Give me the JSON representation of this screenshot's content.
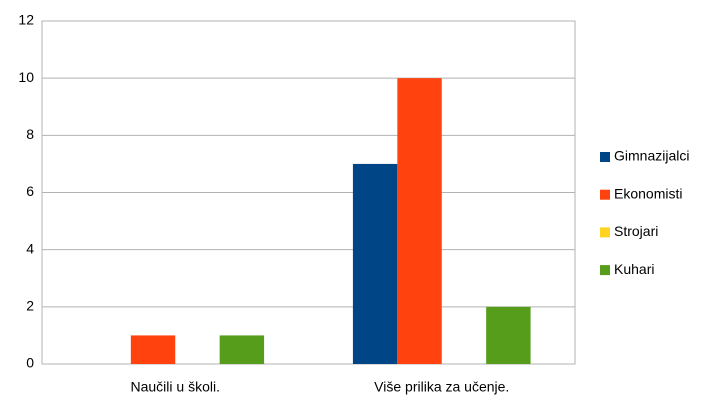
{
  "chart_data": {
    "type": "bar",
    "categories": [
      "Naučili u školi.",
      "Više prilika za učenje."
    ],
    "series": [
      {
        "name": "Gimnazijalci",
        "color": "#004586",
        "values": [
          0,
          7
        ]
      },
      {
        "name": "Ekonomisti",
        "color": "#ff420e",
        "values": [
          1,
          10
        ]
      },
      {
        "name": "Strojari",
        "color": "#ffd320",
        "values": [
          0,
          0
        ]
      },
      {
        "name": "Kuhari",
        "color": "#579d1c",
        "values": [
          1,
          2
        ]
      }
    ],
    "ylim": [
      0,
      12
    ],
    "yticks": [
      0,
      2,
      4,
      6,
      8,
      10,
      12
    ],
    "grid": true,
    "legend": "right"
  }
}
